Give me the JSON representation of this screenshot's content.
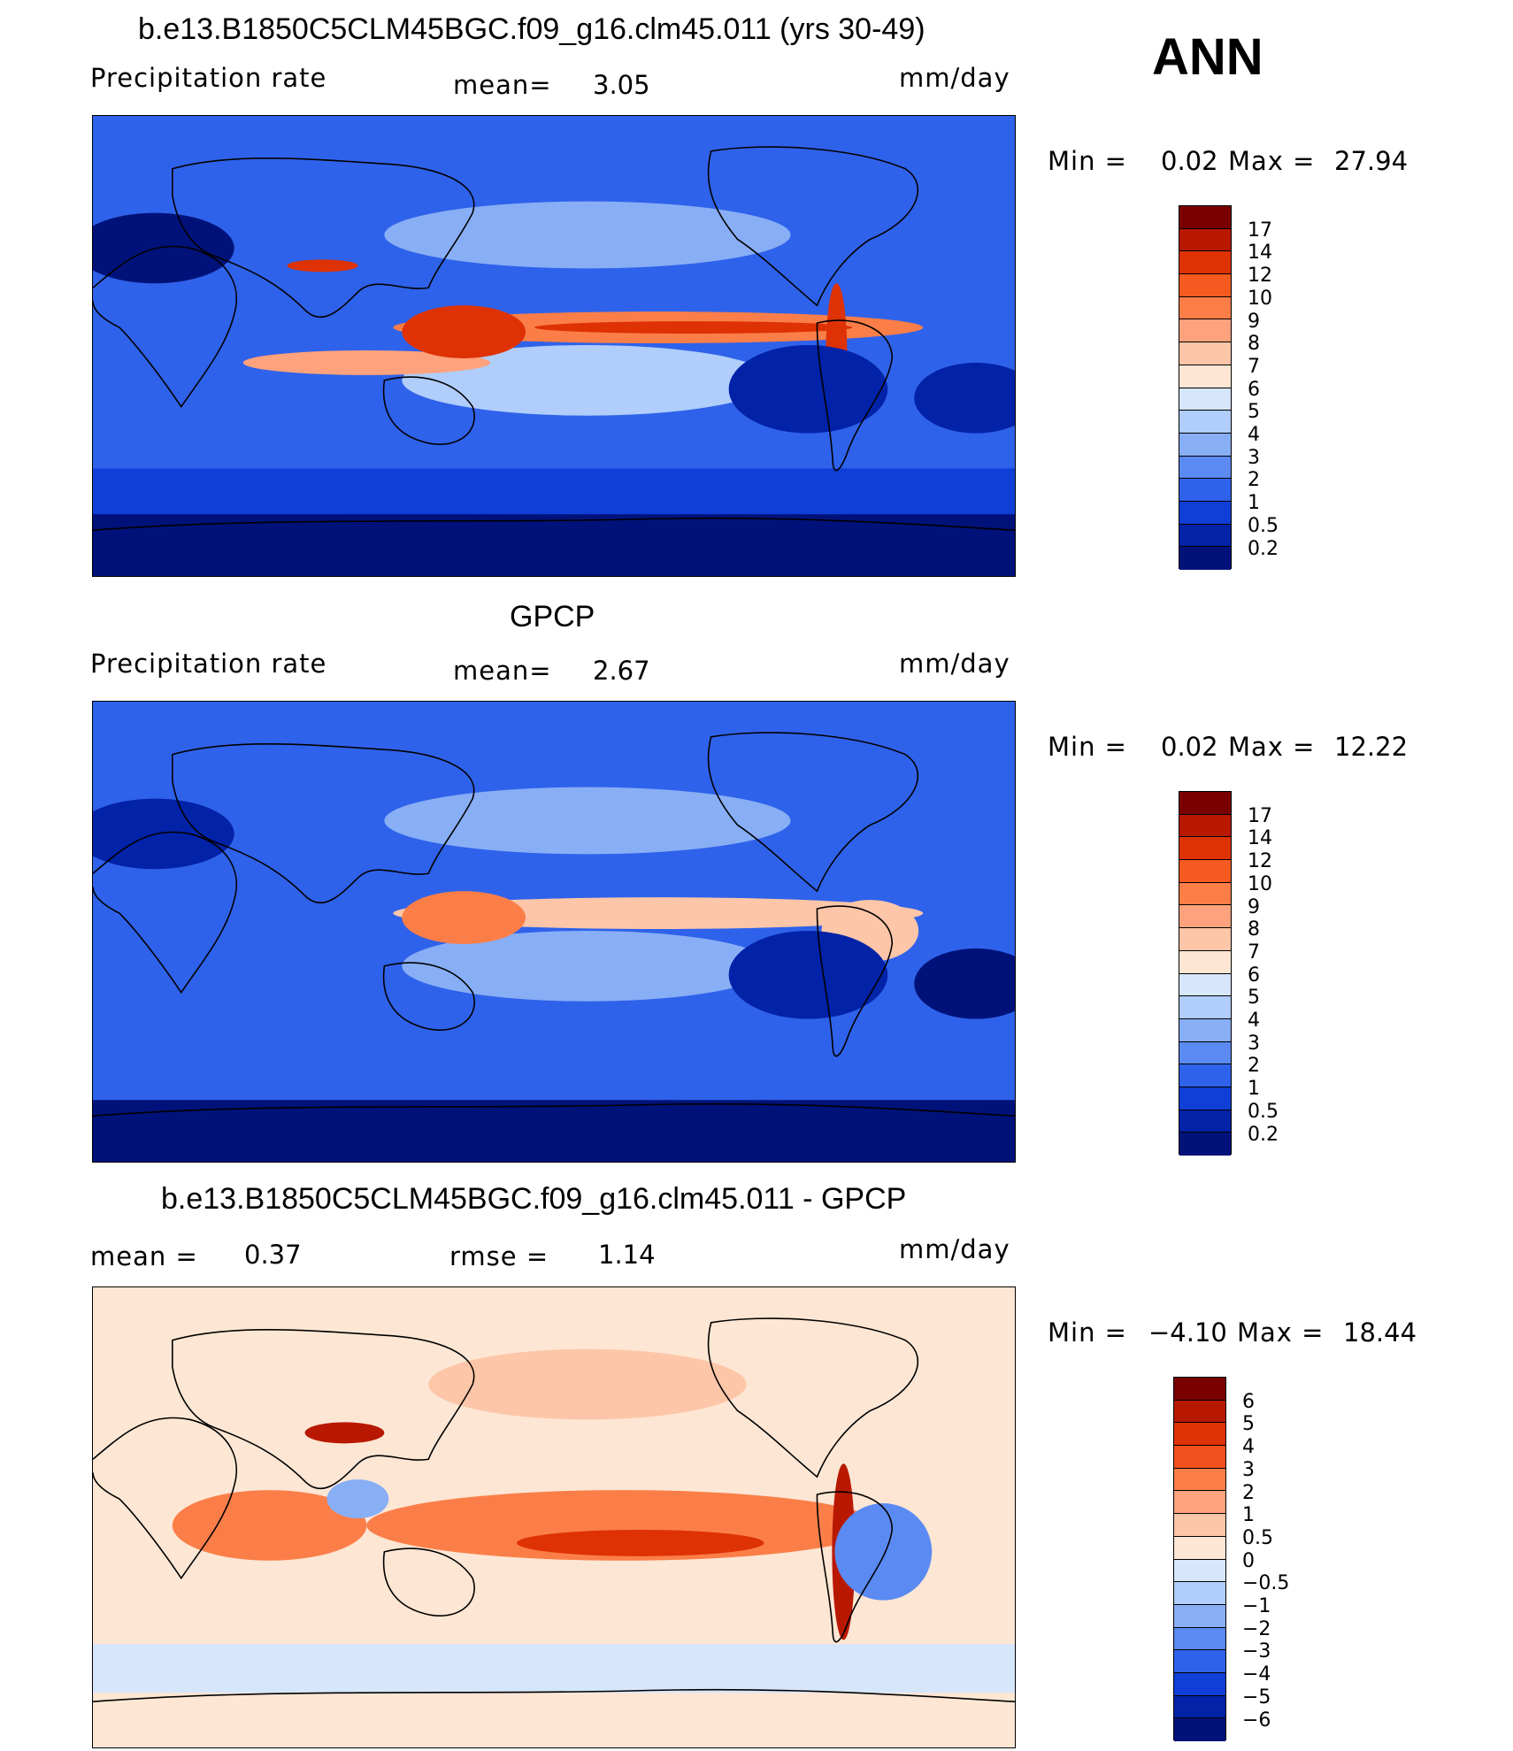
{
  "season": "ANN",
  "panels": [
    {
      "title": "b.e13.B1850C5CLM45BGC.f09_g16.clm45.011 (yrs 30-49)",
      "variable": "Precipitation  rate",
      "mean_label": "mean=",
      "mean_value": "3.05",
      "units": "mm/day",
      "min_label": "Min  =",
      "min_value": "0.02",
      "max_label": "Max  =",
      "max_value": "27.94",
      "colorbar": {
        "labels": [
          "17",
          "14",
          "12",
          "10",
          "9",
          "8",
          "7",
          "6",
          "5",
          "4",
          "3",
          "2",
          "1",
          "0.5",
          "0.2"
        ],
        "colors": [
          "#7a0000",
          "#b81800",
          "#de3204",
          "#f55a20",
          "#fb7e48",
          "#fda27c",
          "#fdc6a8",
          "#fde6d4",
          "#d6e6fb",
          "#b0cdfb",
          "#88aef6",
          "#5a8af2",
          "#2f62ea",
          "#0f3fd6",
          "#0222a8",
          "#00127a"
        ]
      },
      "map_data": {
        "background": "#2f62ea",
        "features": [
          {
            "kind": "band",
            "name": "south-ocean-dark",
            "color": "#0f3fd6"
          },
          {
            "kind": "band",
            "name": "antarctic",
            "color": "#00127a"
          },
          {
            "kind": "blob",
            "name": "north-pacific-track",
            "color": "#88aef6"
          },
          {
            "kind": "blob",
            "name": "south-pacific-spcz",
            "color": "#b0cdfb"
          },
          {
            "kind": "blob",
            "name": "itcz-pacific",
            "color": "#fb7e48"
          },
          {
            "kind": "blob",
            "name": "itcz-core",
            "color": "#de3204"
          },
          {
            "kind": "blob",
            "name": "indian-ocean-band",
            "color": "#fda27c"
          },
          {
            "kind": "blob",
            "name": "maritime-continent",
            "color": "#de3204"
          },
          {
            "kind": "blob",
            "name": "himalaya-streak",
            "color": "#de3204"
          },
          {
            "kind": "blob",
            "name": "andes-streak",
            "color": "#de3204"
          },
          {
            "kind": "blob",
            "name": "sahara-dry",
            "color": "#00127a"
          },
          {
            "kind": "blob",
            "name": "east-pacific-dry",
            "color": "#0222a8"
          },
          {
            "kind": "blob",
            "name": "atlantic-dry",
            "color": "#0222a8"
          }
        ]
      }
    },
    {
      "title": "GPCP",
      "variable": "Precipitation  rate",
      "mean_label": "mean=",
      "mean_value": "2.67",
      "units": "mm/day",
      "min_label": "Min  =",
      "min_value": "0.02",
      "max_label": "Max  =",
      "max_value": "12.22",
      "colorbar": {
        "labels": [
          "17",
          "14",
          "12",
          "10",
          "9",
          "8",
          "7",
          "6",
          "5",
          "4",
          "3",
          "2",
          "1",
          "0.5",
          "0.2"
        ],
        "colors": [
          "#7a0000",
          "#b81800",
          "#de3204",
          "#f55a20",
          "#fb7e48",
          "#fda27c",
          "#fdc6a8",
          "#fde6d4",
          "#d6e6fb",
          "#b0cdfb",
          "#88aef6",
          "#5a8af2",
          "#2f62ea",
          "#0f3fd6",
          "#0222a8",
          "#00127a"
        ]
      },
      "map_data": {
        "background": "#2f62ea",
        "features": [
          {
            "kind": "band",
            "name": "south-ocean",
            "color": "#2f62ea"
          },
          {
            "kind": "band",
            "name": "antarctic",
            "color": "#00127a"
          },
          {
            "kind": "blob",
            "name": "north-pacific-track",
            "color": "#88aef6"
          },
          {
            "kind": "blob",
            "name": "south-pacific-spcz",
            "color": "#88aef6"
          },
          {
            "kind": "blob",
            "name": "itcz-pacific",
            "color": "#fdc6a8"
          },
          {
            "kind": "blob",
            "name": "maritime-continent",
            "color": "#fb7e48"
          },
          {
            "kind": "blob",
            "name": "amazon",
            "color": "#fdc6a8"
          },
          {
            "kind": "blob",
            "name": "sahara-dry",
            "color": "#0222a8"
          },
          {
            "kind": "blob",
            "name": "east-pacific-dry",
            "color": "#0222a8"
          },
          {
            "kind": "blob",
            "name": "atlantic-dry",
            "color": "#00127a"
          }
        ]
      }
    },
    {
      "title": "b.e13.B1850C5CLM45BGC.f09_g16.clm45.011 - GPCP",
      "mean_label": "mean  =",
      "mean_value": "0.37",
      "rmse_label": "rmse  =",
      "rmse_value": "1.14",
      "units": "mm/day",
      "min_label": "Min  =",
      "min_value": "−4.10",
      "max_label": "Max  =",
      "max_value": "18.44",
      "colorbar": {
        "labels": [
          "6",
          "5",
          "4",
          "3",
          "2",
          "1",
          "0.5",
          "0",
          "−0.5",
          "−1",
          "−2",
          "−3",
          "−4",
          "−5",
          "−6"
        ],
        "colors": [
          "#7a0000",
          "#b81800",
          "#de3204",
          "#f0501c",
          "#fb7e48",
          "#fda27c",
          "#fdc6a8",
          "#fde6d4",
          "#d6e6fb",
          "#b0cdfb",
          "#88aef6",
          "#5a8af2",
          "#2f62ea",
          "#0f3fd6",
          "#0222a8",
          "#00127a"
        ]
      },
      "map_data": {
        "background": "#fde6d4",
        "features": [
          {
            "kind": "band",
            "name": "high-south",
            "color": "#d6e6fb"
          },
          {
            "kind": "blob",
            "name": "indian-ocean-wet",
            "color": "#fb7e48"
          },
          {
            "kind": "blob",
            "name": "pacific-itcz-wet",
            "color": "#fb7e48"
          },
          {
            "kind": "blob",
            "name": "pacific-core",
            "color": "#de3204"
          },
          {
            "kind": "blob",
            "name": "andes-wet",
            "color": "#b81800"
          },
          {
            "kind": "blob",
            "name": "tibet-wet",
            "color": "#b81800"
          },
          {
            "kind": "blob",
            "name": "amazon-dry",
            "color": "#5a8af2"
          },
          {
            "kind": "blob",
            "name": "west-pacific-dry",
            "color": "#88aef6"
          },
          {
            "kind": "blob",
            "name": "north-pacific-wet",
            "color": "#fdc6a8"
          }
        ]
      }
    }
  ]
}
